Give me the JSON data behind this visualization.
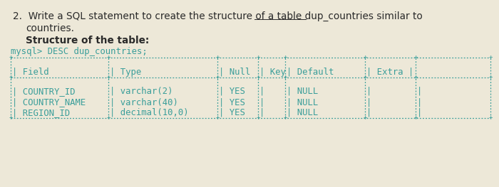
{
  "background_color": "#ede8d8",
  "title_color": "#2a2a2a",
  "teal_color": "#3a9e9a",
  "font_size_title": 9.8,
  "font_size_mono": 8.8,
  "font_size_bold_label": 9.8,
  "line1_plain": "2.  Write a SQL statement to create the structure of a table ",
  "line1_underlined": "dup_countries",
  "line1_end": " similar to",
  "line2": "   countries.",
  "bold_label": "   Structure of the table:",
  "mysql_cmd": "mysql> DESC dup_countries;",
  "sep_top": "+----------------+--------------------+------+-----+---------+-------+",
  "sep_mid": "+----------------+--------------------+------+-----+---------+-------+",
  "sep_bot": "+----------------+--------------------+------+-----+---------+-------+",
  "header": "| Field          | Type               | Null | Key | Default | Extra |",
  "row1": "| COUNTRY_ID     | varchar(2)         | YES  |     | NULL    |       |",
  "row2": "| COUNTRY_NAME   | varchar(40)        | YES  |     | NULL    |       |",
  "row3": "| REGION_ID      | decimal(10,0)      | YES  |     | NULL    |       |"
}
